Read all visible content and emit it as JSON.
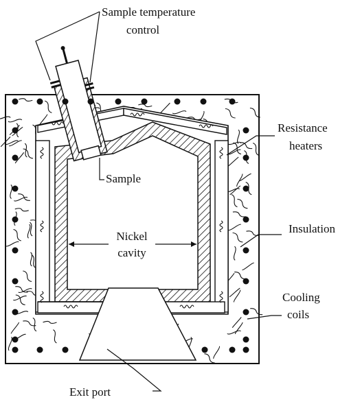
{
  "labels": {
    "sample_temperature_control_line1": "Sample temperature",
    "sample_temperature_control_line2": "control",
    "resistance_heaters_line1": "Resistance",
    "resistance_heaters_line2": "heaters",
    "sample": "Sample",
    "nickel_cavity_line1": "Nickel",
    "nickel_cavity_line2": "cavity",
    "insulation": "Insulation",
    "cooling_coils_line1": "Cooling",
    "cooling_coils_line2": "coils",
    "exit_port": "Exit port"
  },
  "colors": {
    "ink": "#111111",
    "background": "#ffffff"
  }
}
